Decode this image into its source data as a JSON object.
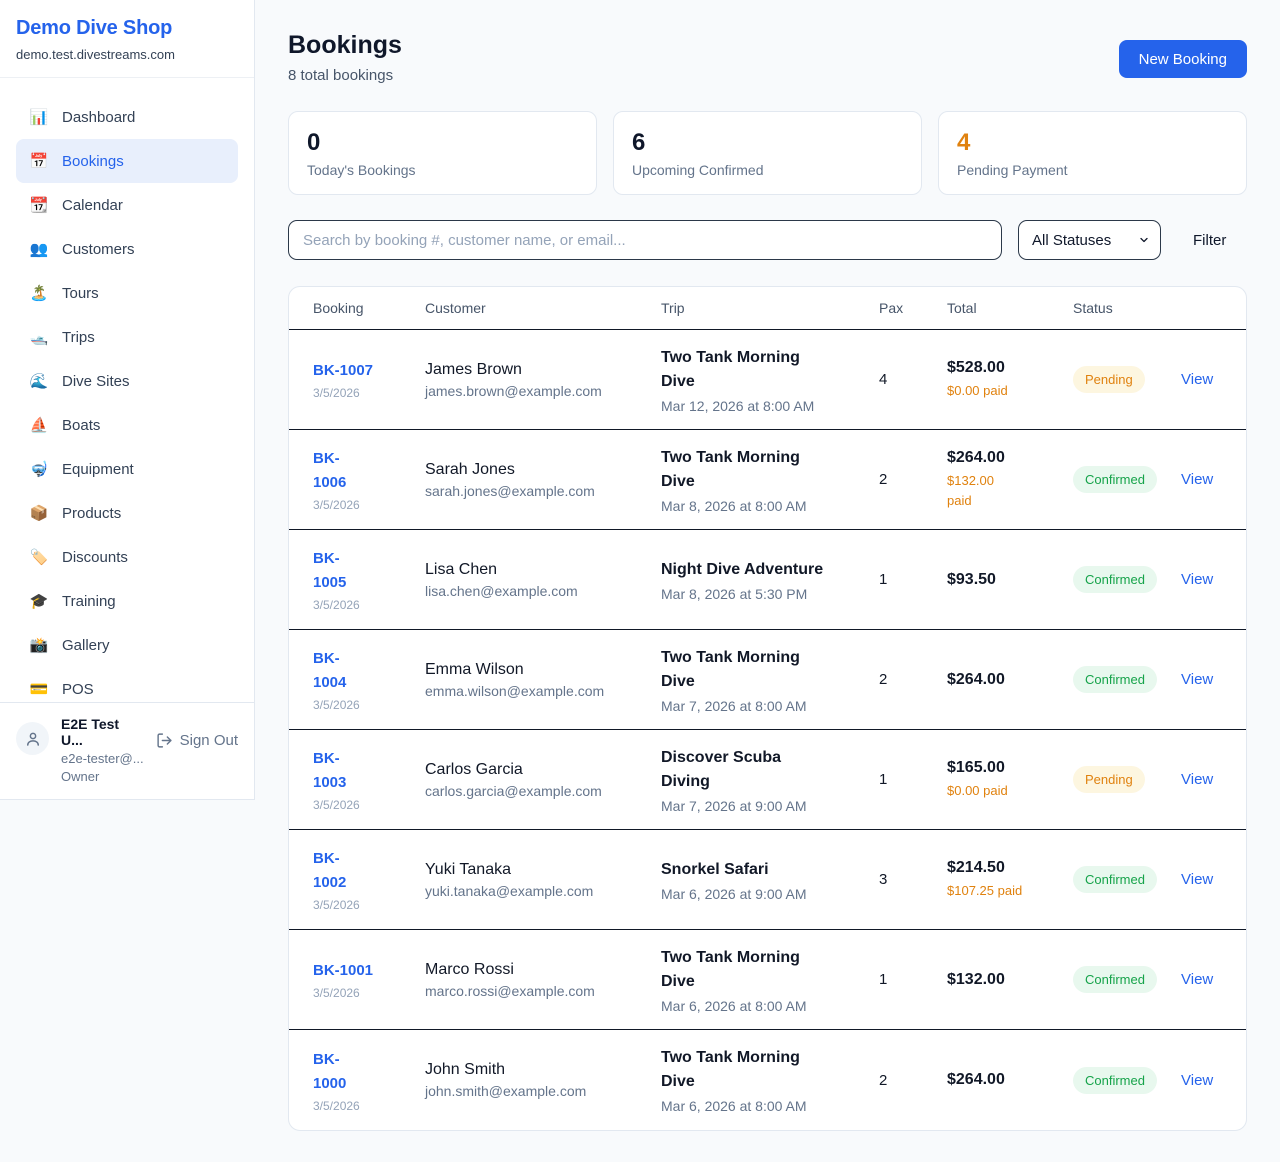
{
  "sidebar": {
    "brand": "Demo Dive Shop",
    "domain": "demo.test.divestreams.com",
    "items": [
      {
        "label": "Dashboard",
        "icon": "bar-chart-icon",
        "glyph": "📊",
        "active": false
      },
      {
        "label": "Bookings",
        "icon": "calendar-icon",
        "glyph": "📅",
        "active": true
      },
      {
        "label": "Calendar",
        "icon": "tear-calendar-icon",
        "glyph": "📆",
        "active": false
      },
      {
        "label": "Customers",
        "icon": "people-icon",
        "glyph": "👥",
        "active": false
      },
      {
        "label": "Tours",
        "icon": "island-icon",
        "glyph": "🏝️",
        "active": false
      },
      {
        "label": "Trips",
        "icon": "speedboat-icon",
        "glyph": "🛥️",
        "active": false
      },
      {
        "label": "Dive Sites",
        "icon": "wave-icon",
        "glyph": "🌊",
        "active": false
      },
      {
        "label": "Boats",
        "icon": "sailboat-icon",
        "glyph": "⛵",
        "active": false
      },
      {
        "label": "Equipment",
        "icon": "diving-mask-icon",
        "glyph": "🤿",
        "active": false
      },
      {
        "label": "Products",
        "icon": "package-icon",
        "glyph": "📦",
        "active": false
      },
      {
        "label": "Discounts",
        "icon": "tag-icon",
        "glyph": "🏷️",
        "active": false
      },
      {
        "label": "Training",
        "icon": "graduation-cap-icon",
        "glyph": "🎓",
        "active": false
      },
      {
        "label": "Gallery",
        "icon": "camera-flash-icon",
        "glyph": "📸",
        "active": false
      },
      {
        "label": "POS",
        "icon": "credit-card-icon",
        "glyph": "💳",
        "active": false
      }
    ],
    "user": {
      "name": "E2E Test U...",
      "email": "e2e-tester@...",
      "role": "Owner",
      "signout_label": "Sign Out"
    }
  },
  "header": {
    "title": "Bookings",
    "subtitle": "8 total bookings",
    "new_booking_label": "New Booking"
  },
  "stats": [
    {
      "value": "0",
      "label": "Today's Bookings",
      "accent": "dark"
    },
    {
      "value": "6",
      "label": "Upcoming Confirmed",
      "accent": "dark"
    },
    {
      "value": "4",
      "label": "Pending Payment",
      "accent": "orange"
    }
  ],
  "controls": {
    "search_placeholder": "Search by booking #, customer name, or email...",
    "status_select_value": "All Statuses",
    "filter_label": "Filter"
  },
  "table": {
    "columns": [
      "Booking",
      "Customer",
      "Trip",
      "Pax",
      "Total",
      "Status"
    ],
    "view_label": "View",
    "rows": [
      {
        "id": "BK-1007",
        "date": "3/5/2026",
        "name": "James Brown",
        "email": "james.brown@example.com",
        "trip": "Two Tank Morning\nDive",
        "trip_time": "Mar 12, 2026 at 8:00 AM",
        "pax": "4",
        "total": "$528.00",
        "paid": "$0.00 paid",
        "status": "Pending",
        "status_type": "pending"
      },
      {
        "id": "BK-\n1006",
        "date": "3/5/2026",
        "name": "Sarah Jones",
        "email": "sarah.jones@example.com",
        "trip": "Two Tank Morning\nDive",
        "trip_time": "Mar 8, 2026 at 8:00 AM",
        "pax": "2",
        "total": "$264.00",
        "paid": "$132.00\npaid",
        "status": "Confirmed",
        "status_type": "confirmed"
      },
      {
        "id": "BK-\n1005",
        "date": "3/5/2026",
        "name": "Lisa Chen",
        "email": "lisa.chen@example.com",
        "trip": "Night Dive Adventure",
        "trip_time": "Mar 8, 2026 at 5:30 PM",
        "pax": "1",
        "total": "$93.50",
        "paid": null,
        "status": "Confirmed",
        "status_type": "confirmed"
      },
      {
        "id": "BK-\n1004",
        "date": "3/5/2026",
        "name": "Emma Wilson",
        "email": "emma.wilson@example.com",
        "trip": "Two Tank Morning\nDive",
        "trip_time": "Mar 7, 2026 at 8:00 AM",
        "pax": "2",
        "total": "$264.00",
        "paid": null,
        "status": "Confirmed",
        "status_type": "confirmed"
      },
      {
        "id": "BK-\n1003",
        "date": "3/5/2026",
        "name": "Carlos Garcia",
        "email": "carlos.garcia@example.com",
        "trip": "Discover Scuba\nDiving",
        "trip_time": "Mar 7, 2026 at 9:00 AM",
        "pax": "1",
        "total": "$165.00",
        "paid": "$0.00 paid",
        "status": "Pending",
        "status_type": "pending"
      },
      {
        "id": "BK-\n1002",
        "date": "3/5/2026",
        "name": "Yuki Tanaka",
        "email": "yuki.tanaka@example.com",
        "trip": "Snorkel Safari",
        "trip_time": "Mar 6, 2026 at 9:00 AM",
        "pax": "3",
        "total": "$214.50",
        "paid": "$107.25 paid",
        "status": "Confirmed",
        "status_type": "confirmed"
      },
      {
        "id": "BK-1001",
        "date": "3/5/2026",
        "name": "Marco Rossi",
        "email": "marco.rossi@example.com",
        "trip": "Two Tank Morning\nDive",
        "trip_time": "Mar 6, 2026 at 8:00 AM",
        "pax": "1",
        "total": "$132.00",
        "paid": null,
        "status": "Confirmed",
        "status_type": "confirmed"
      },
      {
        "id": "BK-\n1000",
        "date": "3/5/2026",
        "name": "John Smith",
        "email": "john.smith@example.com",
        "trip": "Two Tank Morning\nDive",
        "trip_time": "Mar 6, 2026 at 8:00 AM",
        "pax": "2",
        "total": "$264.00",
        "paid": null,
        "status": "Confirmed",
        "status_type": "confirmed"
      }
    ]
  },
  "colors": {
    "brand_blue": "#2563eb",
    "accent_orange": "#e0820f",
    "confirmed_green": "#16a34a",
    "pending_bg": "#fdf6e0",
    "confirmed_bg": "#e8f8ee",
    "page_bg": "#f8fafc",
    "dark_text": "#0f172a",
    "muted_text": "#64748b"
  }
}
